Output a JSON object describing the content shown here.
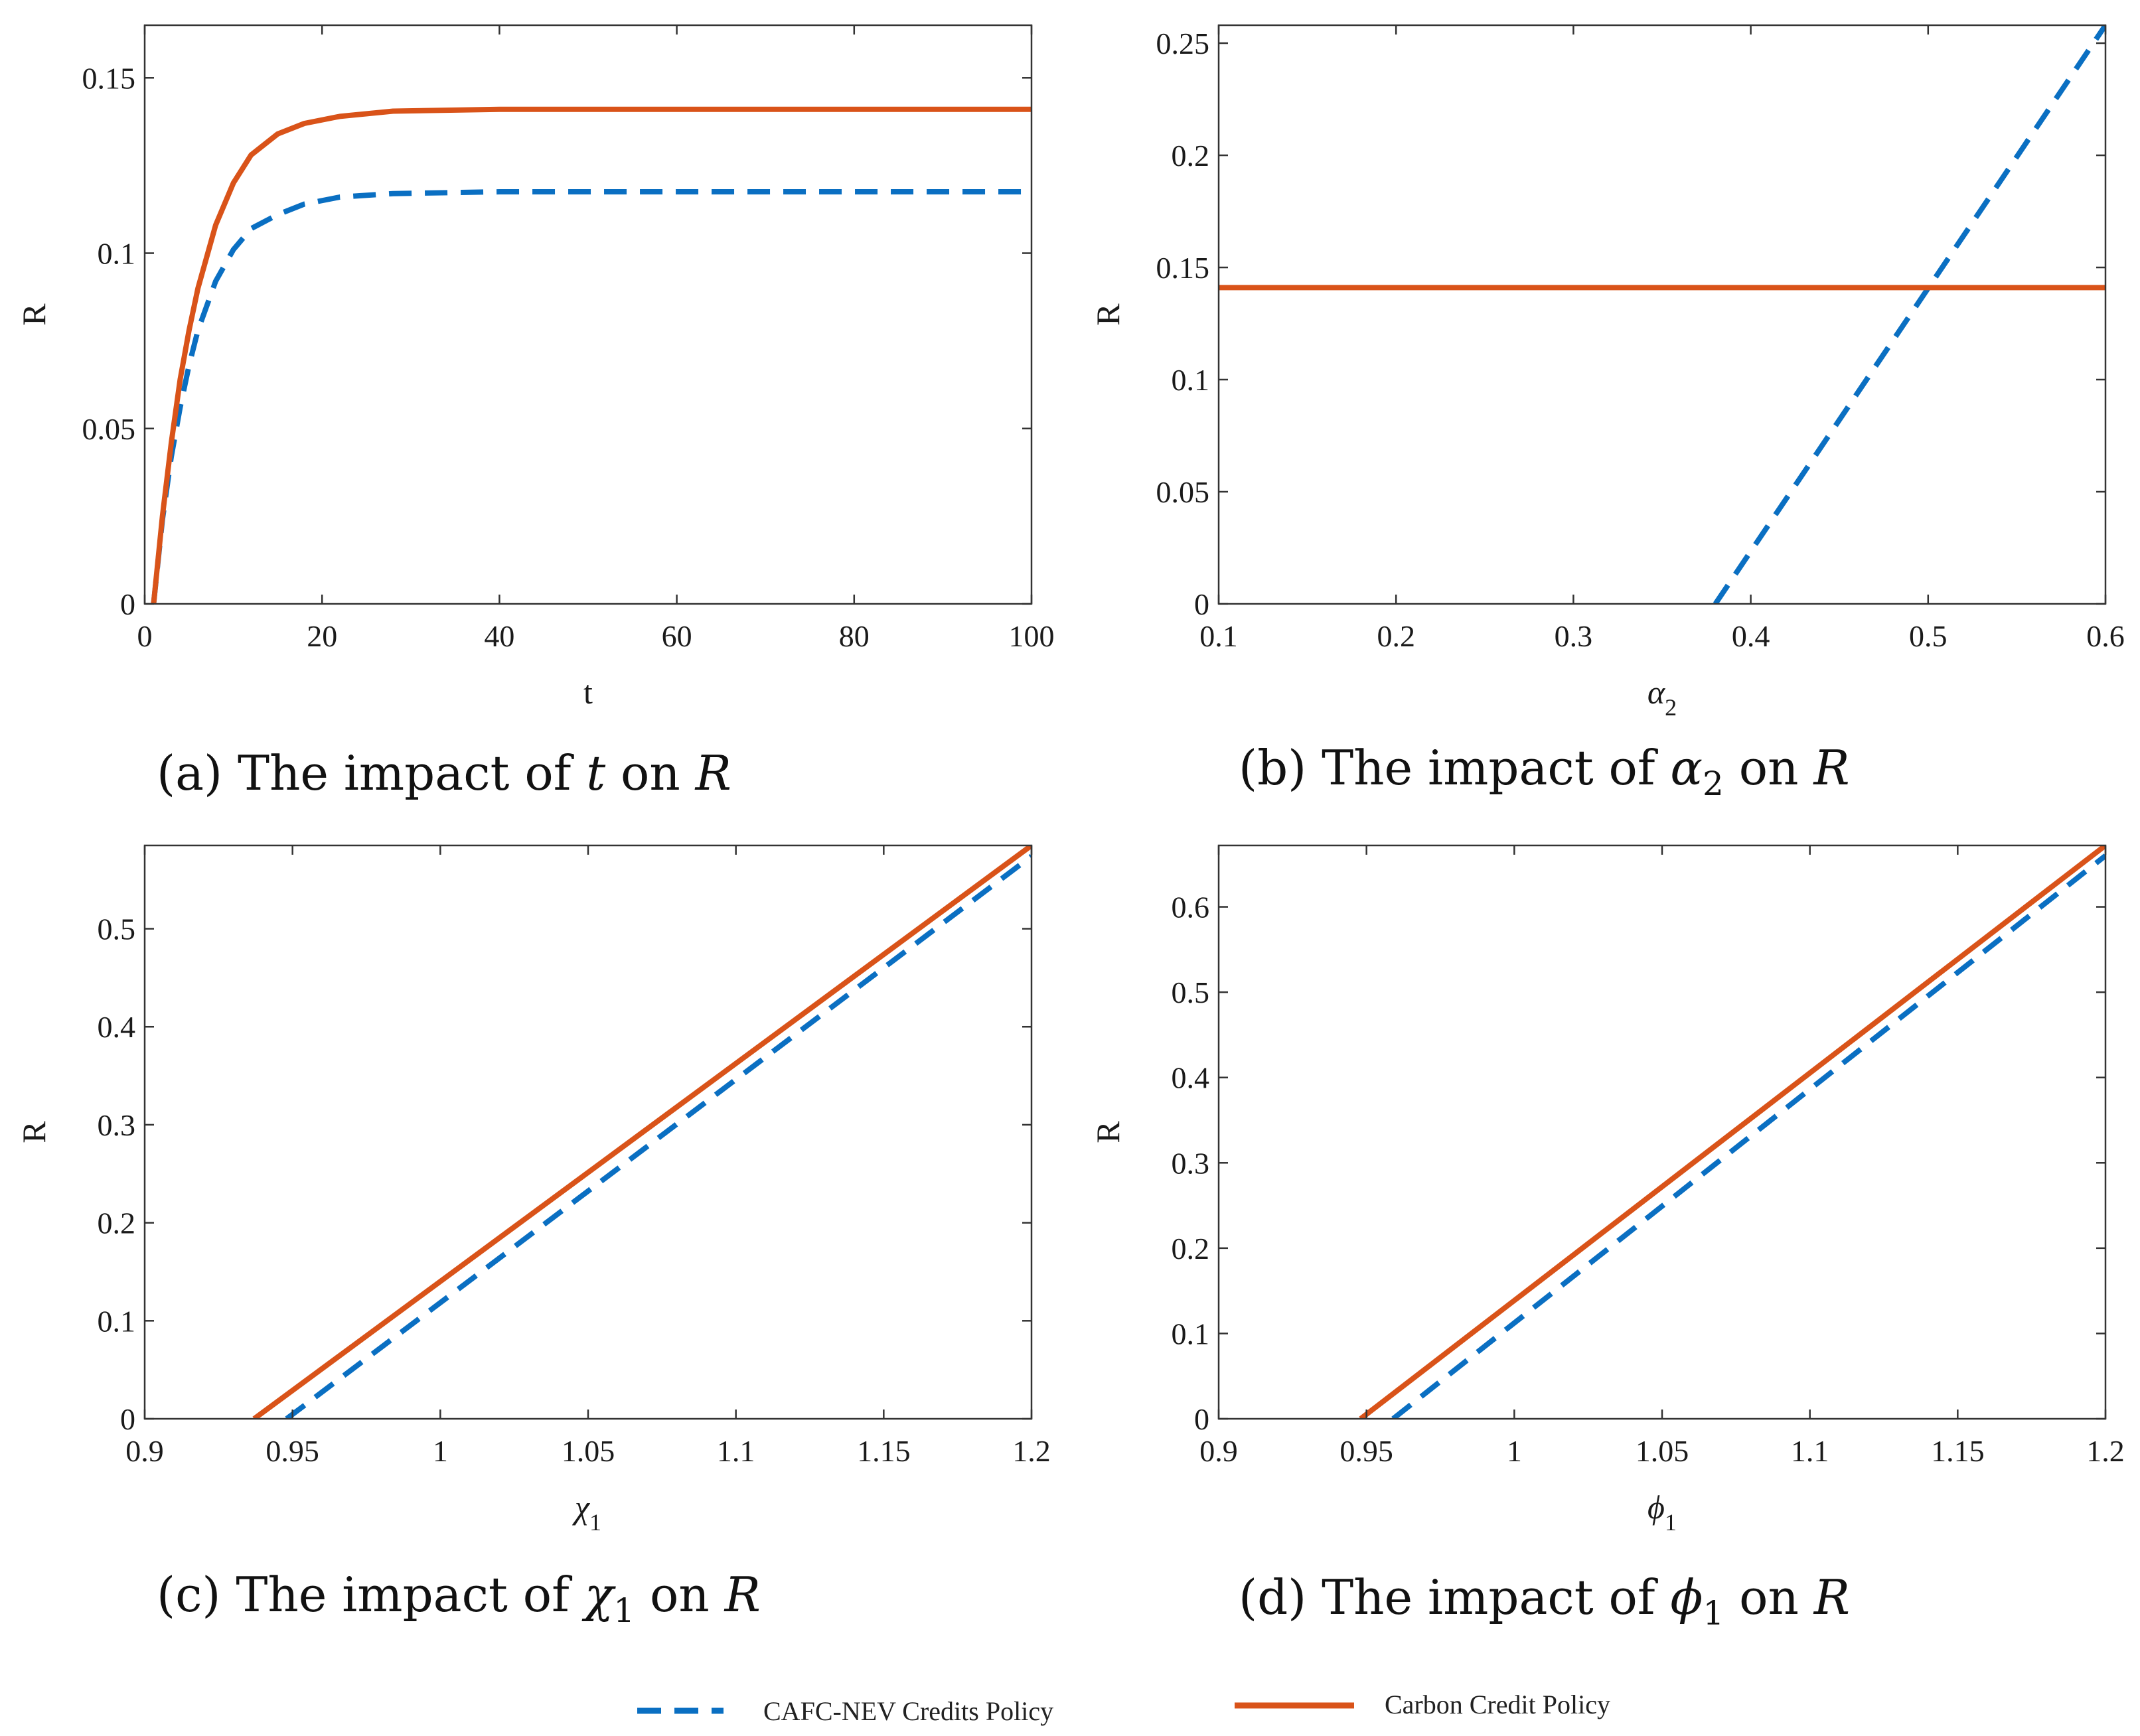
{
  "colors": {
    "series_dashed": "#0a6fc2",
    "series_solid": "#d95319",
    "axis": "#333333"
  },
  "legend": [
    {
      "label": "CAFC-NEV Credits Policy",
      "style": "dashed",
      "color": "#0a6fc2"
    },
    {
      "label": "Carbon Credit Policy",
      "style": "solid",
      "color": "#d95319"
    }
  ],
  "chart_data": [
    {
      "id": "a",
      "type": "line",
      "caption": {
        "tag": "(a)",
        "pre": "The impact of",
        "symbol": "t",
        "sub": "",
        "mid": "on",
        "post": "R"
      },
      "xlabel": "t",
      "xlabel_sub": "",
      "ylabel": "R",
      "xlim": [
        0,
        100
      ],
      "ylim": [
        0,
        0.165
      ],
      "xticks": [
        0,
        20,
        40,
        60,
        80,
        100
      ],
      "xtick_labels": [
        "0",
        "20",
        "40",
        "60",
        "80",
        "100"
      ],
      "yticks": [
        0,
        0.05,
        0.1,
        0.15
      ],
      "ytick_labels": [
        "0",
        "0.05",
        "0.1",
        "0.15"
      ],
      "series": [
        {
          "name": "CAFC-NEV Credits Policy",
          "style": "dashed",
          "x": [
            1,
            2,
            3,
            4,
            5,
            6,
            8,
            10,
            12,
            15,
            18,
            22,
            28,
            40,
            60,
            80,
            100
          ],
          "y": [
            0,
            0.024,
            0.042,
            0.056,
            0.068,
            0.078,
            0.092,
            0.101,
            0.107,
            0.111,
            0.114,
            0.116,
            0.117,
            0.1175,
            0.1175,
            0.1175,
            0.1175
          ]
        },
        {
          "name": "Carbon Credit Policy",
          "style": "solid",
          "x": [
            1,
            2,
            3,
            4,
            5,
            6,
            8,
            10,
            12,
            15,
            18,
            22,
            28,
            40,
            60,
            80,
            100
          ],
          "y": [
            0,
            0.025,
            0.046,
            0.064,
            0.078,
            0.09,
            0.108,
            0.12,
            0.128,
            0.134,
            0.137,
            0.139,
            0.1405,
            0.141,
            0.141,
            0.141,
            0.141
          ]
        }
      ]
    },
    {
      "id": "b",
      "type": "line",
      "caption": {
        "tag": "(b)",
        "pre": "The impact of",
        "symbol": "α",
        "sub": "2",
        "mid": "on",
        "post": "R"
      },
      "xlabel": "α",
      "xlabel_sub": "2",
      "ylabel": "R",
      "xlim": [
        0.1,
        0.6
      ],
      "ylim": [
        0,
        0.258
      ],
      "xticks": [
        0.1,
        0.2,
        0.3,
        0.4,
        0.5,
        0.6
      ],
      "xtick_labels": [
        "0.1",
        "0.2",
        "0.3",
        "0.4",
        "0.5",
        "0.6"
      ],
      "yticks": [
        0,
        0.05,
        0.1,
        0.15,
        0.2,
        0.25
      ],
      "ytick_labels": [
        "0",
        "0.05",
        "0.1",
        "0.15",
        "0.2",
        "0.25"
      ],
      "series": [
        {
          "name": "CAFC-NEV Credits Policy",
          "style": "dashed",
          "x": [
            0.38,
            0.6
          ],
          "y": [
            0,
            0.258
          ]
        },
        {
          "name": "Carbon Credit Policy",
          "style": "solid",
          "x": [
            0.1,
            0.6
          ],
          "y": [
            0.141,
            0.141
          ]
        }
      ]
    },
    {
      "id": "c",
      "type": "line",
      "caption": {
        "tag": "(c)",
        "pre": "The impact of",
        "symbol": "χ",
        "sub": "1",
        "mid": "on",
        "post": "R"
      },
      "xlabel": "χ",
      "xlabel_sub": "1",
      "ylabel": "R",
      "xlim": [
        0.9,
        1.2
      ],
      "ylim": [
        0,
        0.585
      ],
      "xticks": [
        0.9,
        0.95,
        1,
        1.05,
        1.1,
        1.15,
        1.2
      ],
      "xtick_labels": [
        "0.9",
        "0.95",
        "1",
        "1.05",
        "1.1",
        "1.15",
        "1.2"
      ],
      "yticks": [
        0,
        0.1,
        0.2,
        0.3,
        0.4,
        0.5
      ],
      "ytick_labels": [
        "0",
        "0.1",
        "0.2",
        "0.3",
        "0.4",
        "0.5"
      ],
      "series": [
        {
          "name": "CAFC-NEV Credits Policy",
          "style": "dashed",
          "x": [
            0.948,
            1.2
          ],
          "y": [
            0,
            0.574
          ]
        },
        {
          "name": "Carbon Credit Policy",
          "style": "solid",
          "x": [
            0.937,
            1.2
          ],
          "y": [
            0,
            0.585
          ]
        }
      ]
    },
    {
      "id": "d",
      "type": "line",
      "caption": {
        "tag": "(d)",
        "pre": "The impact of",
        "symbol": "ϕ",
        "sub": "1",
        "mid": "on",
        "post": "R"
      },
      "xlabel": "ϕ",
      "xlabel_sub": "1",
      "ylabel": "R",
      "xlim": [
        0.9,
        1.2
      ],
      "ylim": [
        0,
        0.672
      ],
      "xticks": [
        0.9,
        0.95,
        1,
        1.05,
        1.1,
        1.15,
        1.2
      ],
      "xtick_labels": [
        "0.9",
        "0.95",
        "1",
        "1.05",
        "1.1",
        "1.15",
        "1.2"
      ],
      "yticks": [
        0,
        0.1,
        0.2,
        0.3,
        0.4,
        0.5,
        0.6
      ],
      "ytick_labels": [
        "0",
        "0.1",
        "0.2",
        "0.3",
        "0.4",
        "0.5",
        "0.6"
      ],
      "series": [
        {
          "name": "CAFC-NEV Credits Policy",
          "style": "dashed",
          "x": [
            0.959,
            1.2
          ],
          "y": [
            0,
            0.66
          ]
        },
        {
          "name": "Carbon Credit Policy",
          "style": "solid",
          "x": [
            0.948,
            1.2
          ],
          "y": [
            0,
            0.672
          ]
        }
      ]
    }
  ]
}
